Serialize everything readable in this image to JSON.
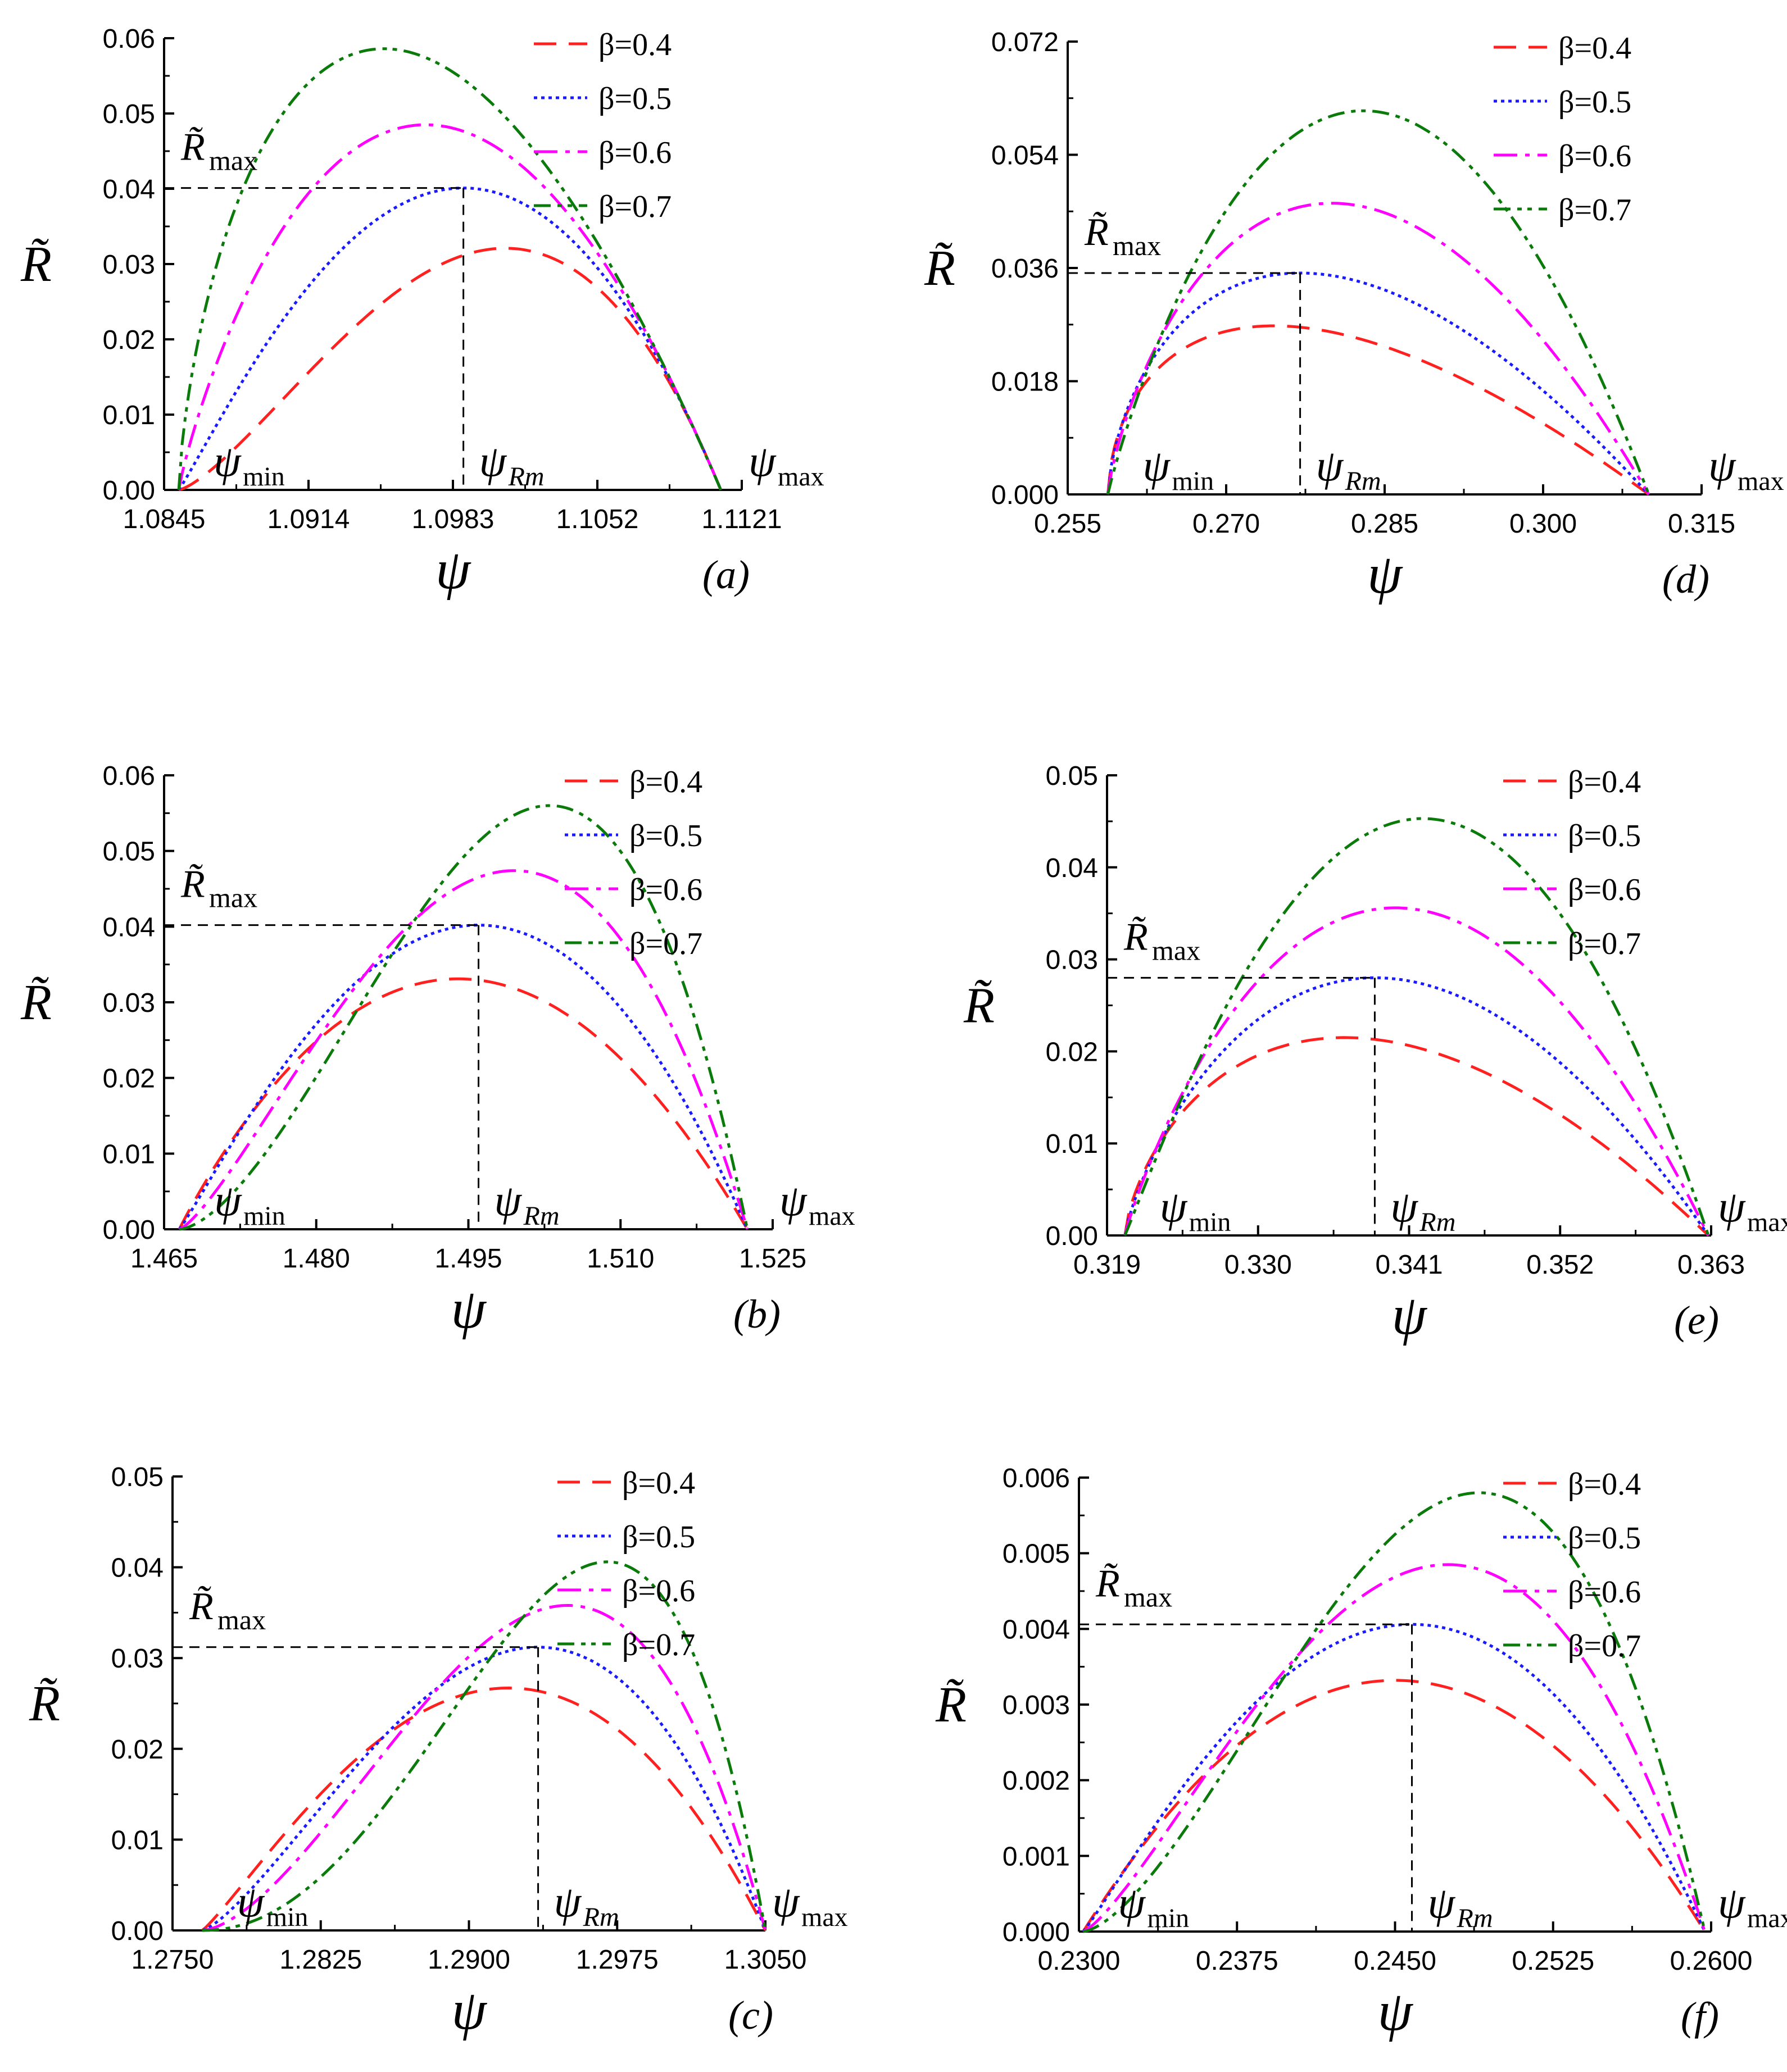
{
  "colors": {
    "beta_0_4": "#ff2020",
    "beta_0_5": "#1a1aff",
    "beta_0_6": "#ff00ff",
    "beta_0_7": "#0a7a0a",
    "guide": "#000000"
  },
  "legend": {
    "beta_0_4": "β=0.4",
    "beta_0_5": "β=0.5",
    "beta_0_6": "β=0.6",
    "beta_0_7": "β=0.7"
  },
  "symbols": {
    "ylabel": "R̃",
    "xlabel": "ψ",
    "rmax_base": "R̃",
    "rmax_sub": "max",
    "psi": "ψ",
    "psi_min_sub": "min",
    "psi_max_sub": "max",
    "psi_rm_sub": "Rm"
  },
  "chart_data": [
    {
      "id": "a",
      "panel_label": "(a)",
      "type": "line",
      "xlabel": "ψ",
      "ylabel": "R̃",
      "xlim": [
        1.0845,
        1.1121
      ],
      "ylim": [
        0,
        0.06
      ],
      "xticks": [
        "1.0845",
        "1.0914",
        "1.0983",
        "1.1052",
        "1.1121"
      ],
      "yticks": [
        "0.00",
        "0.01",
        "0.02",
        "0.03",
        "0.04",
        "0.05",
        "0.06"
      ],
      "psi_min": 1.0852,
      "psi_max": 1.1111,
      "psi_rm": 1.0988,
      "r_max": 0.0401,
      "series": [
        {
          "name": "β=0.4",
          "peak_x": 1.1008,
          "peak_y": 0.0321
        },
        {
          "name": "β=0.5",
          "peak_x": 1.0988,
          "peak_y": 0.0401
        },
        {
          "name": "β=0.6",
          "peak_x": 1.097,
          "peak_y": 0.0485
        },
        {
          "name": "β=0.7",
          "peak_x": 1.095,
          "peak_y": 0.0586
        }
      ]
    },
    {
      "id": "b",
      "panel_label": "(b)",
      "type": "line",
      "xlabel": "ψ",
      "ylabel": "R̃",
      "xlim": [
        1.465,
        1.525
      ],
      "ylim": [
        0,
        0.06
      ],
      "xticks": [
        "1.465",
        "1.480",
        "1.495",
        "1.510",
        "1.525"
      ],
      "yticks": [
        "0.00",
        "0.01",
        "0.02",
        "0.03",
        "0.04",
        "0.05",
        "0.06"
      ],
      "psi_min": 1.4665,
      "psi_max": 1.5225,
      "psi_rm": 1.496,
      "r_max": 0.0402,
      "series": [
        {
          "name": "β=0.4",
          "peak_x": 1.494,
          "peak_y": 0.0331
        },
        {
          "name": "β=0.5",
          "peak_x": 1.496,
          "peak_y": 0.0402
        },
        {
          "name": "β=0.6",
          "peak_x": 1.4995,
          "peak_y": 0.0474
        },
        {
          "name": "β=0.7",
          "peak_x": 1.503,
          "peak_y": 0.056
        }
      ]
    },
    {
      "id": "c",
      "panel_label": "(c)",
      "type": "line",
      "xlabel": "ψ",
      "ylabel": "R̃",
      "xlim": [
        1.275,
        1.305
      ],
      "ylim": [
        0,
        0.05
      ],
      "xticks": [
        "1.2750",
        "1.2825",
        "1.2900",
        "1.2975",
        "1.3050"
      ],
      "yticks": [
        "0.00",
        "0.01",
        "0.02",
        "0.03",
        "0.04",
        "0.05"
      ],
      "psi_min": 1.2765,
      "psi_max": 1.305,
      "psi_rm": 1.2935,
      "r_max": 0.0312,
      "series": [
        {
          "name": "β=0.4",
          "peak_x": 1.292,
          "peak_y": 0.0267
        },
        {
          "name": "β=0.5",
          "peak_x": 1.2935,
          "peak_y": 0.0312
        },
        {
          "name": "β=0.6",
          "peak_x": 1.295,
          "peak_y": 0.0358
        },
        {
          "name": "β=0.7",
          "peak_x": 1.297,
          "peak_y": 0.0406
        }
      ]
    },
    {
      "id": "d",
      "panel_label": "(d)",
      "type": "line",
      "xlabel": "ψ",
      "ylabel": "R̃",
      "xlim": [
        0.255,
        0.315
      ],
      "ylim": [
        0,
        0.072
      ],
      "xticks": [
        "0.255",
        "0.270",
        "0.285",
        "0.300",
        "0.315"
      ],
      "yticks": [
        "0.000",
        "0.018",
        "0.036",
        "0.054",
        "0.072"
      ],
      "psi_min": 0.2588,
      "psi_max": 0.31,
      "psi_rm": 0.277,
      "r_max": 0.0352,
      "series": [
        {
          "name": "β=0.4",
          "peak_x": 0.2745,
          "peak_y": 0.0268
        },
        {
          "name": "β=0.5",
          "peak_x": 0.277,
          "peak_y": 0.0352
        },
        {
          "name": "β=0.6",
          "peak_x": 0.28,
          "peak_y": 0.0463
        },
        {
          "name": "β=0.7",
          "peak_x": 0.283,
          "peak_y": 0.061
        }
      ]
    },
    {
      "id": "e",
      "panel_label": "(e)",
      "type": "line",
      "xlabel": "ψ",
      "ylabel": "R̃",
      "xlim": [
        0.319,
        0.363
      ],
      "ylim": [
        0,
        0.05
      ],
      "xticks": [
        "0.319",
        "0.330",
        "0.341",
        "0.352",
        "0.363"
      ],
      "yticks": [
        "0.00",
        "0.01",
        "0.02",
        "0.03",
        "0.04",
        "0.05"
      ],
      "psi_min": 0.3203,
      "psi_max": 0.3628,
      "psi_rm": 0.3385,
      "r_max": 0.028,
      "series": [
        {
          "name": "β=0.4",
          "peak_x": 0.3363,
          "peak_y": 0.0215
        },
        {
          "name": "β=0.5",
          "peak_x": 0.3385,
          "peak_y": 0.028
        },
        {
          "name": "β=0.6",
          "peak_x": 0.34,
          "peak_y": 0.0356
        },
        {
          "name": "β=0.7",
          "peak_x": 0.342,
          "peak_y": 0.0453
        }
      ]
    },
    {
      "id": "f",
      "panel_label": "(f)",
      "type": "line",
      "xlabel": "ψ",
      "ylabel": "R̃",
      "xlim": [
        0.23,
        0.26
      ],
      "ylim": [
        0,
        0.006
      ],
      "xticks": [
        "0.2300",
        "0.2375",
        "0.2450",
        "0.2525",
        "0.2600"
      ],
      "yticks": [
        "0.000",
        "0.001",
        "0.002",
        "0.003",
        "0.004",
        "0.005",
        "0.006"
      ],
      "psi_min": 0.2302,
      "psi_max": 0.2597,
      "psi_rm": 0.2458,
      "r_max": 0.00406,
      "series": [
        {
          "name": "β=0.4",
          "peak_x": 0.245,
          "peak_y": 0.00332
        },
        {
          "name": "β=0.5",
          "peak_x": 0.2458,
          "peak_y": 0.00406
        },
        {
          "name": "β=0.6",
          "peak_x": 0.2475,
          "peak_y": 0.00485
        },
        {
          "name": "β=0.7",
          "peak_x": 0.249,
          "peak_y": 0.0058
        }
      ]
    }
  ]
}
